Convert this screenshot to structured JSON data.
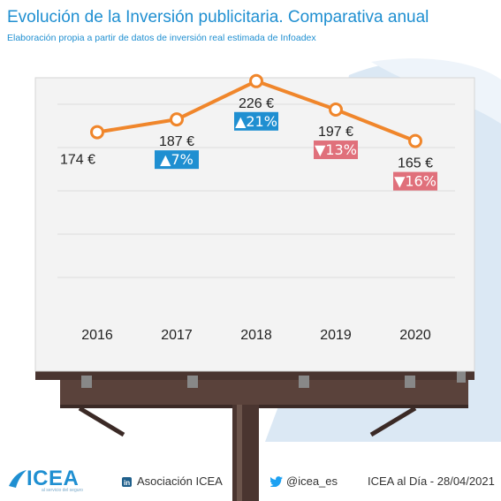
{
  "header": {
    "title": "Evolución de la Inversión publicitaria. Comparativa anual",
    "subtitle": "Elaboración propia a partir de datos de inversión real estimada de Infoadex"
  },
  "chart_data": {
    "type": "line",
    "categories": [
      "2016",
      "2017",
      "2018",
      "2019",
      "2020"
    ],
    "values": [
      174,
      187,
      226,
      197,
      165
    ],
    "value_labels": [
      "174 €",
      "187 €",
      "226 €",
      "197 €",
      "165 €"
    ],
    "changes": [
      null,
      "▲7%",
      "▲21%",
      "▼13%",
      "▼16%"
    ],
    "change_direction": [
      null,
      "up",
      "up",
      "down",
      "down"
    ],
    "ylim": [
      0,
      260
    ],
    "grid": true,
    "colors": {
      "line": "#f0862b",
      "up": "#1f8fd1",
      "down": "#e0707b"
    }
  },
  "footer": {
    "brand": "ICEA",
    "brand_sub": "al servicio del seguro",
    "linkedin_icon": "linkedin-icon",
    "linkedin": "Asociación ICEA",
    "twitter_icon": "twitter-icon",
    "twitter": "@icea_es",
    "edition": "ICEA al Día - 28/04/2021"
  }
}
